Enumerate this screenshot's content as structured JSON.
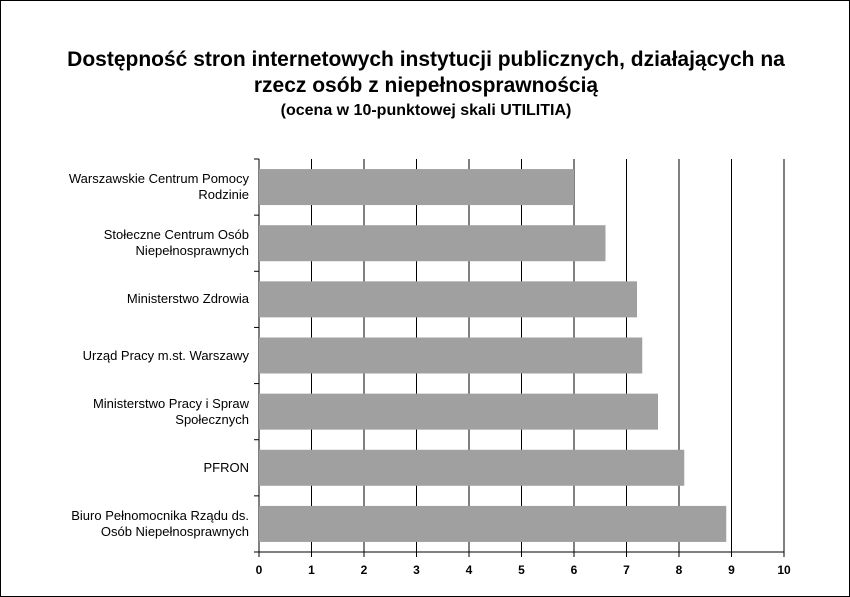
{
  "chart_data": {
    "type": "bar",
    "orientation": "horizontal",
    "title": "Dostępność stron internetowych instytucji publicznych, działających na rzecz osób z niepełnosprawnością",
    "subtitle": "(ocena w 10-punktowej skali UTILITIA)",
    "categories": [
      "Warszawskie Centrum Pomocy Rodzinie",
      "Stołeczne Centrum Osób Niepełnosprawnych",
      "Ministerstwo Zdrowia",
      "Urząd Pracy m.st. Warszawy",
      "Ministerstwo Pracy i Spraw Społecznych",
      "PFRON",
      "Biuro Pełnomocnika Rządu ds. Osób Niepełnosprawnych"
    ],
    "values": [
      6.0,
      6.6,
      7.2,
      7.3,
      7.6,
      8.1,
      8.9
    ],
    "color": "#a0a0a0",
    "xlim": [
      0,
      10
    ],
    "xticks": [
      0,
      1,
      2,
      3,
      4,
      5,
      6,
      7,
      8,
      9,
      10
    ],
    "grid": true
  }
}
